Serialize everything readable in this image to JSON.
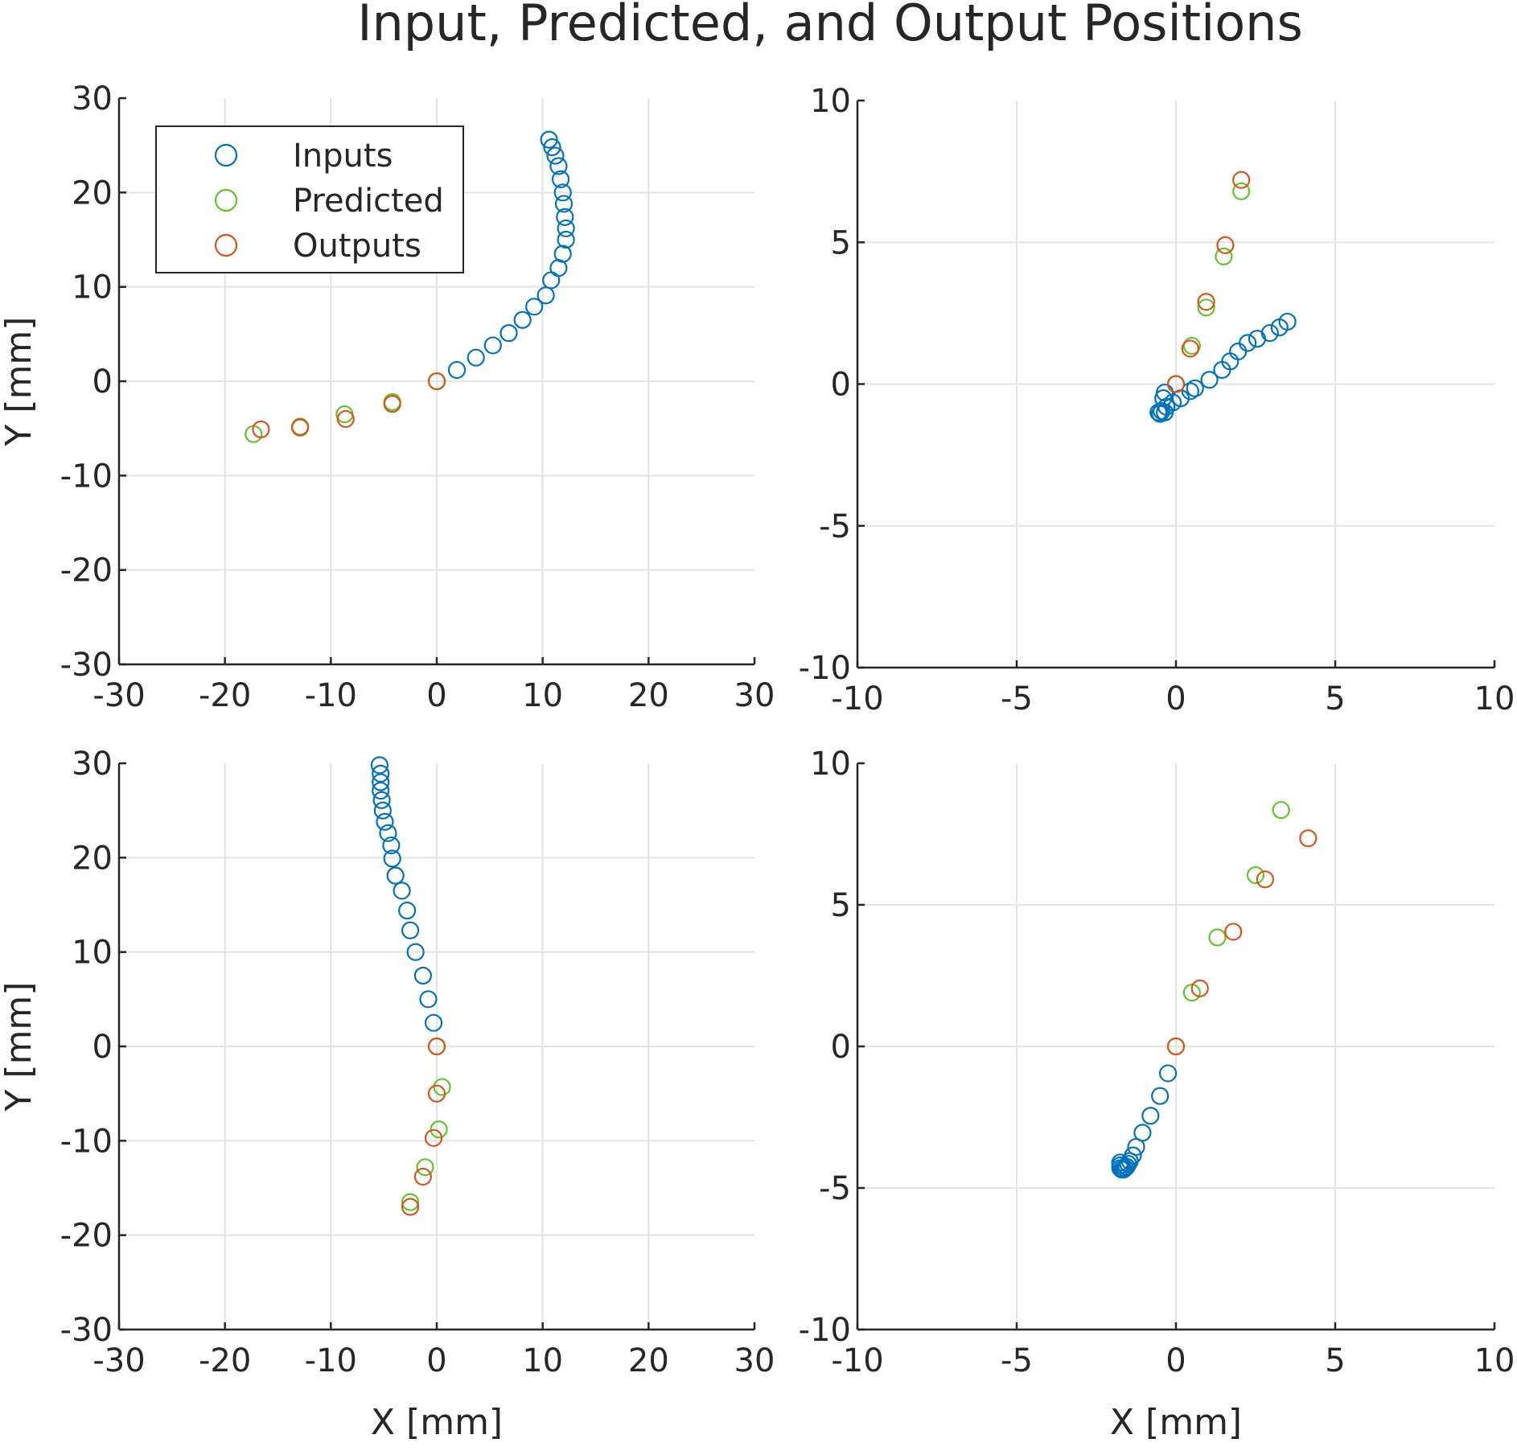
{
  "figure_title": "Input, Predicted, and Output Positions",
  "colors": {
    "inputs": "#0072BD",
    "predicted": "#5ec62a",
    "outputs": "#D95319",
    "grid": "#e3e3e3",
    "axis": "#262626"
  },
  "legend": {
    "location": "top-left of first subplot",
    "entries": [
      "Inputs",
      "Predicted",
      "Outputs"
    ]
  },
  "chart_data": [
    {
      "type": "scatter",
      "subplot": "top-left",
      "xlabel": "",
      "ylabel": "Y [mm]",
      "xlim": [
        -30,
        30
      ],
      "ylim": [
        -30,
        30
      ],
      "xticks": [
        -30,
        -20,
        -10,
        0,
        10,
        20,
        30
      ],
      "yticks": [
        -30,
        -20,
        -10,
        0,
        10,
        20,
        30
      ],
      "grid": true,
      "legend": true,
      "series": [
        {
          "name": "Inputs",
          "points": [
            [
              10.6,
              25.6
            ],
            [
              10.9,
              24.8
            ],
            [
              11.2,
              23.9
            ],
            [
              11.5,
              22.8
            ],
            [
              11.7,
              21.4
            ],
            [
              11.9,
              20.0
            ],
            [
              12.0,
              18.8
            ],
            [
              12.1,
              17.4
            ],
            [
              12.2,
              16.2
            ],
            [
              12.2,
              15.0
            ],
            [
              11.9,
              13.5
            ],
            [
              11.5,
              12.0
            ],
            [
              10.8,
              10.7
            ],
            [
              10.3,
              9.1
            ],
            [
              9.2,
              7.9
            ],
            [
              8.1,
              6.5
            ],
            [
              6.8,
              5.1
            ],
            [
              5.3,
              3.8
            ],
            [
              3.7,
              2.5
            ],
            [
              1.9,
              1.2
            ]
          ]
        },
        {
          "name": "Predicted",
          "points": [
            [
              -17.3,
              -5.6
            ],
            [
              -12.9,
              -4.8
            ],
            [
              -8.7,
              -3.5
            ],
            [
              -4.2,
              -2.2
            ],
            [
              0.0,
              0.0
            ]
          ]
        },
        {
          "name": "Outputs",
          "points": [
            [
              -16.6,
              -5.1
            ],
            [
              -12.9,
              -4.9
            ],
            [
              -8.6,
              -4.0
            ],
            [
              -4.2,
              -2.4
            ],
            [
              0.0,
              0.0
            ]
          ]
        }
      ]
    },
    {
      "type": "scatter",
      "subplot": "top-right",
      "xlabel": "",
      "ylabel": "",
      "xlim": [
        -10,
        10
      ],
      "ylim": [
        -10,
        10
      ],
      "xticks": [
        -10,
        -5,
        0,
        5,
        10
      ],
      "yticks": [
        -10,
        -5,
        0,
        5,
        10
      ],
      "grid": true,
      "legend": false,
      "series": [
        {
          "name": "Inputs",
          "points": [
            [
              3.5,
              2.2
            ],
            [
              3.25,
              2.0
            ],
            [
              2.95,
              1.8
            ],
            [
              2.55,
              1.6
            ],
            [
              2.25,
              1.45
            ],
            [
              1.95,
              1.15
            ],
            [
              1.7,
              0.8
            ],
            [
              1.45,
              0.5
            ],
            [
              1.05,
              0.15
            ],
            [
              0.6,
              -0.15
            ],
            [
              0.45,
              -0.25
            ],
            [
              0.15,
              -0.5
            ],
            [
              -0.1,
              -0.65
            ],
            [
              -0.3,
              -0.8
            ],
            [
              -0.45,
              -0.95
            ],
            [
              -0.55,
              -1.0
            ],
            [
              -0.5,
              -1.05
            ],
            [
              -0.35,
              -1.0
            ],
            [
              -0.4,
              -0.5
            ],
            [
              -0.35,
              -0.3
            ]
          ]
        },
        {
          "name": "Predicted",
          "points": [
            [
              2.05,
              6.8
            ],
            [
              1.5,
              4.5
            ],
            [
              0.95,
              2.7
            ],
            [
              0.5,
              1.35
            ],
            [
              0.0,
              0.0
            ]
          ]
        },
        {
          "name": "Outputs",
          "points": [
            [
              2.05,
              7.2
            ],
            [
              1.55,
              4.9
            ],
            [
              0.95,
              2.9
            ],
            [
              0.45,
              1.25
            ],
            [
              0.0,
              0.0
            ]
          ]
        }
      ]
    },
    {
      "type": "scatter",
      "subplot": "bottom-left",
      "xlabel": "X [mm]",
      "ylabel": "Y [mm]",
      "xlim": [
        -30,
        30
      ],
      "ylim": [
        -30,
        30
      ],
      "xticks": [
        -30,
        -20,
        -10,
        0,
        10,
        20,
        30
      ],
      "yticks": [
        -30,
        -20,
        -10,
        0,
        10,
        20,
        30
      ],
      "grid": true,
      "legend": false,
      "series": [
        {
          "name": "Inputs",
          "points": [
            [
              -5.4,
              29.8
            ],
            [
              -5.3,
              28.9
            ],
            [
              -5.3,
              28.0
            ],
            [
              -5.3,
              27.1
            ],
            [
              -5.2,
              26.1
            ],
            [
              -5.1,
              25.0
            ],
            [
              -4.9,
              23.8
            ],
            [
              -4.6,
              22.6
            ],
            [
              -4.3,
              21.3
            ],
            [
              -4.2,
              19.9
            ],
            [
              -3.9,
              18.1
            ],
            [
              -3.3,
              16.5
            ],
            [
              -2.8,
              14.4
            ],
            [
              -2.5,
              12.3
            ],
            [
              -2.0,
              10.0
            ],
            [
              -1.3,
              7.5
            ],
            [
              -0.8,
              5.0
            ],
            [
              -0.3,
              2.5
            ]
          ]
        },
        {
          "name": "Predicted",
          "points": [
            [
              0.5,
              -4.3
            ],
            [
              0.2,
              -8.8
            ],
            [
              -1.1,
              -12.8
            ],
            [
              -2.5,
              -16.5
            ],
            [
              0.0,
              0.0
            ]
          ]
        },
        {
          "name": "Outputs",
          "points": [
            [
              0.0,
              -5.0
            ],
            [
              -0.3,
              -9.7
            ],
            [
              -1.3,
              -13.8
            ],
            [
              -2.5,
              -17.0
            ],
            [
              0.0,
              0.0
            ]
          ]
        }
      ]
    },
    {
      "type": "scatter",
      "subplot": "bottom-right",
      "xlabel": "X [mm]",
      "ylabel": "",
      "xlim": [
        -10,
        10
      ],
      "ylim": [
        -10,
        10
      ],
      "xticks": [
        -10,
        -5,
        0,
        5,
        10
      ],
      "yticks": [
        -10,
        -5,
        0,
        5,
        10
      ],
      "grid": true,
      "legend": false,
      "series": [
        {
          "name": "Inputs",
          "points": [
            [
              -0.25,
              -0.95
            ],
            [
              -0.5,
              -1.75
            ],
            [
              -0.8,
              -2.45
            ],
            [
              -1.05,
              -3.05
            ],
            [
              -1.25,
              -3.55
            ],
            [
              -1.35,
              -3.85
            ],
            [
              -1.45,
              -4.05
            ],
            [
              -1.5,
              -4.15
            ],
            [
              -1.55,
              -4.25
            ],
            [
              -1.6,
              -4.3
            ],
            [
              -1.65,
              -4.35
            ],
            [
              -1.7,
              -4.35
            ],
            [
              -1.75,
              -4.3
            ],
            [
              -1.75,
              -4.2
            ],
            [
              -1.75,
              -4.1
            ]
          ]
        },
        {
          "name": "Predicted",
          "points": [
            [
              3.3,
              8.35
            ],
            [
              2.5,
              6.05
            ],
            [
              1.3,
              3.85
            ],
            [
              0.5,
              1.9
            ],
            [
              0.0,
              0.0
            ]
          ]
        },
        {
          "name": "Outputs",
          "points": [
            [
              4.15,
              7.35
            ],
            [
              2.8,
              5.9
            ],
            [
              1.8,
              4.05
            ],
            [
              0.75,
              2.05
            ],
            [
              0.0,
              0.0
            ]
          ]
        }
      ]
    }
  ]
}
